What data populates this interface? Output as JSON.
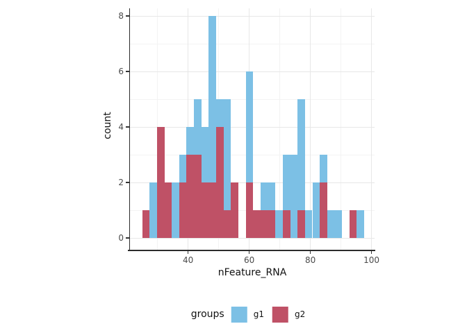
{
  "chart_data": {
    "type": "histogram",
    "mode": "overlay-identity",
    "title": "",
    "xlabel": "nFeature_RNA",
    "ylabel": "count",
    "x_domain": [
      21.0,
      101.0
    ],
    "y_domain": [
      -0.42,
      8.28
    ],
    "x_ticks": [
      40,
      60,
      80,
      100
    ],
    "x_tick_labels": [
      "40",
      "60",
      "80",
      "100"
    ],
    "x_minor": [
      30,
      50,
      70,
      90
    ],
    "y_ticks": [
      0,
      2,
      4,
      6,
      8
    ],
    "y_tick_labels": [
      "0",
      "2",
      "4",
      "6",
      "8"
    ],
    "y_minor": [
      1,
      3,
      5,
      7
    ],
    "grid": {
      "major_color": "#e7e7e7",
      "minor_color": "#f3f3f3"
    },
    "bin_start": 25.0,
    "bin_width": 2.42,
    "series": [
      {
        "name": "g1",
        "color": "#7CC0E5",
        "counts": [
          0,
          2,
          0,
          0,
          2,
          3,
          4,
          5,
          4,
          8,
          5,
          5,
          0,
          0,
          6,
          0,
          2,
          2,
          1,
          3,
          3,
          5,
          1,
          2,
          3,
          1,
          1,
          0,
          0,
          1
        ]
      },
      {
        "name": "g2",
        "color": "#BF5166",
        "counts": [
          1,
          0,
          4,
          2,
          0,
          2,
          3,
          3,
          2,
          2,
          4,
          1,
          2,
          0,
          2,
          1,
          1,
          1,
          0,
          1,
          0,
          1,
          0,
          0,
          2,
          0,
          0,
          0,
          1,
          0
        ]
      }
    ],
    "legend": {
      "title": "groups",
      "entries": [
        {
          "label": "g1",
          "color": "#7CC0E5"
        },
        {
          "label": "g2",
          "color": "#BF5166"
        }
      ]
    }
  }
}
